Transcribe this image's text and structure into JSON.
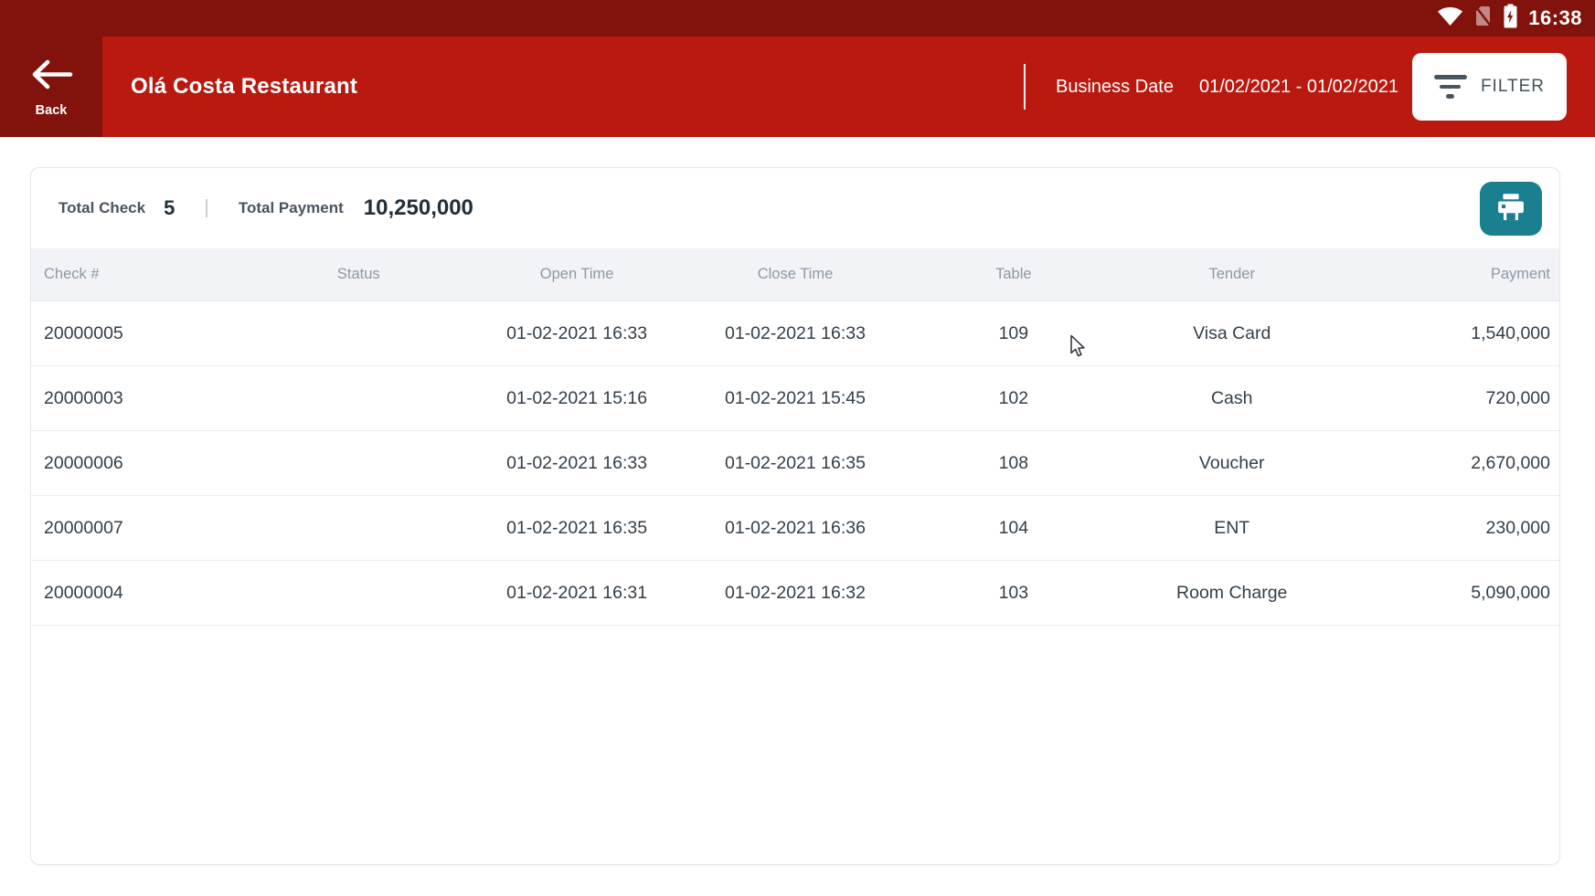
{
  "status_bar": {
    "time": "16:38",
    "icons": [
      "wifi-icon",
      "no-sim-icon",
      "battery-charging-icon"
    ]
  },
  "header": {
    "back_label": "Back",
    "title": "Olá Costa Restaurant",
    "business_date_label": "Business Date",
    "business_date_value": "01/02/2021 - 01/02/2021",
    "filter_label": "FILTER"
  },
  "summary": {
    "total_check_label": "Total Check",
    "total_check_value": "5",
    "total_payment_label": "Total Payment",
    "total_payment_value": "10,250,000"
  },
  "table": {
    "columns": [
      "Check #",
      "Status",
      "Open Time",
      "Close Time",
      "Table",
      "Tender",
      "Payment"
    ],
    "rows": [
      {
        "check": "20000005",
        "status": "",
        "open_time": "01-02-2021 16:33",
        "close_time": "01-02-2021 16:33",
        "table_no": "109",
        "tender": "Visa Card",
        "payment": "1,540,000"
      },
      {
        "check": "20000003",
        "status": "",
        "open_time": "01-02-2021 15:16",
        "close_time": "01-02-2021 15:45",
        "table_no": "102",
        "tender": "Cash",
        "payment": "720,000"
      },
      {
        "check": "20000006",
        "status": "",
        "open_time": "01-02-2021 16:33",
        "close_time": "01-02-2021 16:35",
        "table_no": "108",
        "tender": "Voucher",
        "payment": "2,670,000"
      },
      {
        "check": "20000007",
        "status": "",
        "open_time": "01-02-2021 16:35",
        "close_time": "01-02-2021 16:36",
        "table_no": "104",
        "tender": "ENT",
        "payment": "230,000"
      },
      {
        "check": "20000004",
        "status": "",
        "open_time": "01-02-2021 16:31",
        "close_time": "01-02-2021 16:32",
        "table_no": "103",
        "tender": "Room Charge",
        "payment": "5,090,000"
      }
    ]
  },
  "colors": {
    "status_bar_red": "#82120C",
    "app_bar_red": "#B9190F",
    "print_button_teal": "#1A7F8E",
    "header_text_gray": "#8E98A7",
    "body_text_slate": "#333E48",
    "filter_text": "#43525B"
  }
}
